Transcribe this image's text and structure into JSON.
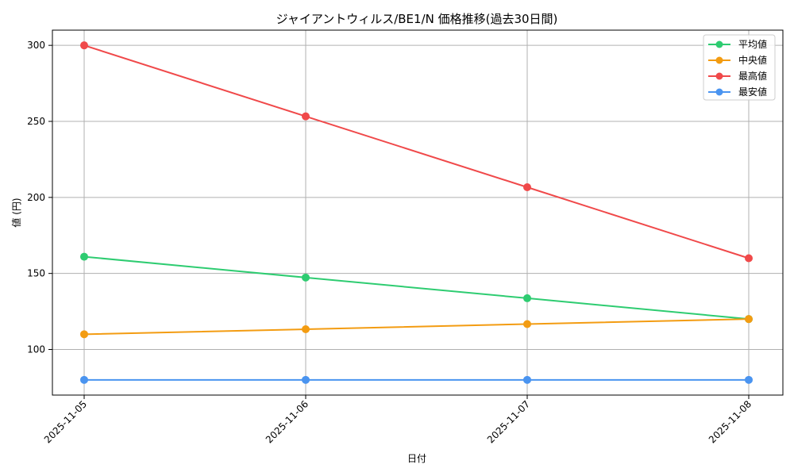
{
  "chart_data": {
    "type": "line",
    "title": "ジャイアントウィルス/BE1/N 価格推移(過去30日間)",
    "xlabel": "日付",
    "ylabel": "値 (円)",
    "x": [
      "2025-11-05",
      "2025-11-06",
      "2025-11-07",
      "2025-11-08"
    ],
    "ylim": [
      70,
      310
    ],
    "yticks": [
      100,
      150,
      200,
      250,
      300
    ],
    "grid": true,
    "legend_position": "top-right",
    "series": [
      {
        "name": "平均値",
        "color": "#2ecc71",
        "values": [
          161,
          147.3,
          133.7,
          120
        ]
      },
      {
        "name": "中央値",
        "color": "#f39c12",
        "values": [
          110,
          113.3,
          116.7,
          120
        ]
      },
      {
        "name": "最高値",
        "color": "#f0494a",
        "values": [
          300,
          253.3,
          206.7,
          160
        ]
      },
      {
        "name": "最安値",
        "color": "#4a94f0",
        "values": [
          80,
          80,
          80,
          80
        ]
      }
    ]
  }
}
